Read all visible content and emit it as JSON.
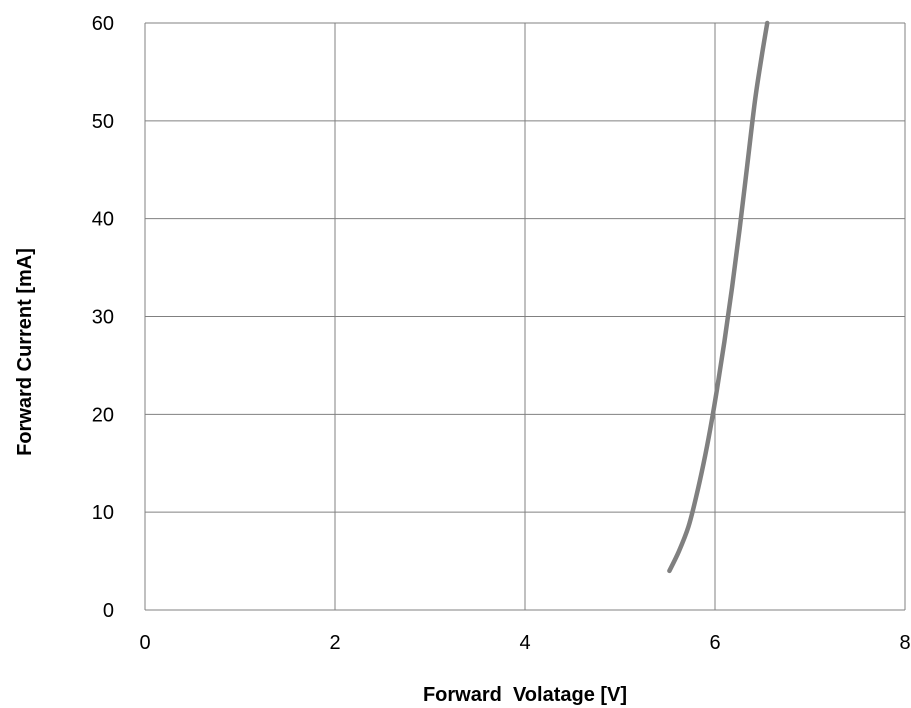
{
  "chart_data": {
    "type": "line",
    "title": "",
    "xlabel": "Forward  Volatage [V]",
    "ylabel": "Forward Current [mA]",
    "xlim": [
      0,
      8
    ],
    "ylim": [
      0,
      60
    ],
    "x_ticks": [
      "0",
      "2",
      "4",
      "6",
      "8"
    ],
    "y_ticks": [
      "0",
      "10",
      "20",
      "30",
      "40",
      "50",
      "60"
    ],
    "grid": true,
    "legend": "none",
    "series": [
      {
        "color": "#808080",
        "x": [
          5.52,
          5.62,
          5.72,
          5.8,
          5.88,
          5.95,
          6.02,
          6.1,
          6.18,
          6.26,
          6.34,
          6.42,
          6.49,
          6.55
        ],
        "y": [
          4,
          6,
          8.5,
          11.5,
          15,
          18.5,
          22.5,
          27.5,
          33,
          39,
          45.5,
          52,
          56.5,
          60
        ]
      }
    ]
  }
}
